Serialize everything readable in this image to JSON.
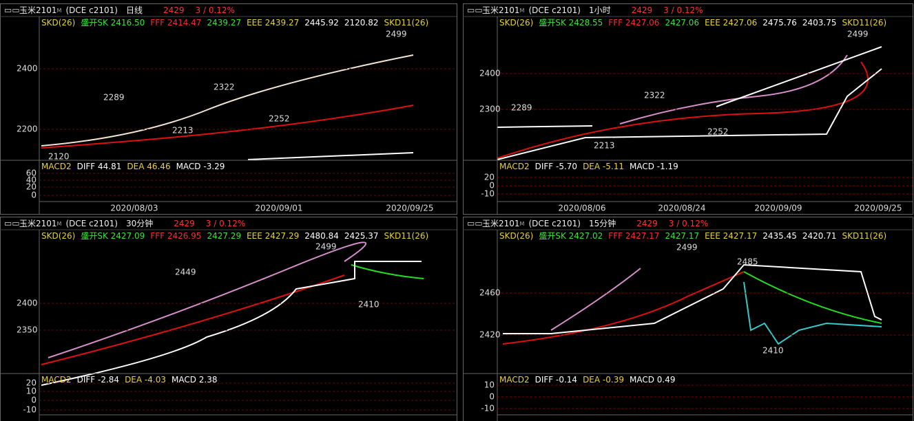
{
  "panels": [
    {
      "header": {
        "symbol": "玉米2101",
        "sup": "M",
        "code": "(DCE c2101)",
        "period": "日线",
        "price": "2429",
        "change": "3 / 0.12%"
      },
      "indicator": [
        "SKD(26)",
        "盛开SK 2416.50",
        "FFF 2414.47",
        "2439.27",
        "EEE 2439.27",
        "2445.92",
        "2120.82",
        "SKD11(26)"
      ],
      "price_labels": [
        "2289",
        "2322",
        "2499",
        "2213",
        "2252",
        "2120"
      ],
      "yticks": [
        "2400",
        "2200"
      ],
      "xlabels": [
        "2020/08/03",
        "2020/09/01",
        "2020/09/25"
      ],
      "macd": [
        "MACD2",
        "DIFF 44.81",
        "DEA 46.46",
        "MACD -3.29"
      ],
      "macd_ticks": [
        "60",
        "40",
        "20",
        "0"
      ]
    },
    {
      "header": {
        "symbol": "玉米2101",
        "sup": "M",
        "code": "(DCE c2101)",
        "period": "1小时",
        "price": "2429",
        "change": "3 / 0.12%"
      },
      "indicator": [
        "SKD(26)",
        "盛开SK 2428.55",
        "FFF 2427.06",
        "2427.06",
        "EEE 2427.06",
        "2475.76",
        "2403.75",
        "SKD11(26)"
      ],
      "price_labels": [
        "2289",
        "2322",
        "2499",
        "2213",
        "2252"
      ],
      "yticks": [
        "2400",
        "2300"
      ],
      "xlabels": [
        "2020/08/06",
        "2020/08/24",
        "2020/09/09",
        "2020/09/25"
      ],
      "macd": [
        "MACD2",
        "DIFF -5.70",
        "DEA -5.11",
        "MACD -1.19"
      ],
      "macd_ticks": [
        "20",
        "0",
        "-10"
      ]
    },
    {
      "header": {
        "symbol": "玉米2101",
        "sup": "M",
        "code": "(DCE c2101)",
        "period": "30分钟",
        "price": "2429",
        "change": "3 / 0.12%"
      },
      "indicator": [
        "SKD(26)",
        "盛开SK 2427.09",
        "FFF 2426.95",
        "2427.29",
        "EEE 2427.29",
        "2480.84",
        "2425.37",
        "SKD11(26)"
      ],
      "price_labels": [
        "2449",
        "2499",
        "2410"
      ],
      "yticks": [
        "2400",
        "2350"
      ],
      "xlabels": [],
      "macd": [
        "MACD2",
        "DIFF -2.84",
        "DEA -4.03",
        "MACD 2.38"
      ],
      "macd_ticks": [
        "20",
        "10",
        "0",
        "-10"
      ]
    },
    {
      "header": {
        "symbol": "玉米2101",
        "sup": "M",
        "code": "(DCE c2101)",
        "period": "15分钟",
        "price": "2429",
        "change": "3 / 0.12%"
      },
      "indicator": [
        "SKD(26)",
        "盛开SK 2427.02",
        "FFF 2427.17",
        "2427.17",
        "EEE 2427.17",
        "2435.45",
        "2420.71",
        "SKD11(26)"
      ],
      "price_labels": [
        "2499",
        "2485",
        "2410"
      ],
      "yticks": [
        "2460",
        "2420"
      ],
      "xlabels": [],
      "macd": [
        "MACD2",
        "DIFF -0.14",
        "DEA -0.39",
        "MACD 0.49"
      ],
      "macd_ticks": [
        "10",
        "0",
        "-10"
      ]
    }
  ]
}
